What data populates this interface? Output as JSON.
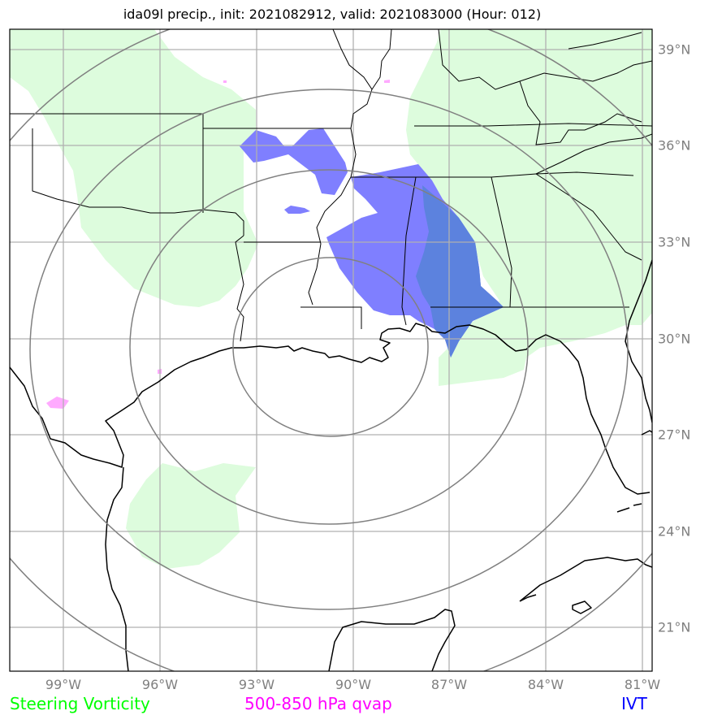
{
  "title": "ida09l precip., init: 2021082912, valid: 2021083000 (Hour: 012)",
  "longitude_labels": [
    "99°W",
    "96°W",
    "93°W",
    "90°W",
    "87°W",
    "84°W",
    "81°W"
  ],
  "latitude_labels": [
    "39°N",
    "36°N",
    "33°N",
    "30°N",
    "27°N",
    "24°N",
    "21°N"
  ],
  "legend": {
    "steering_vorticity": {
      "label": "Steering Vorticity",
      "color": "#00ff00"
    },
    "qvap": {
      "label": "500-850 hPa qvap",
      "color": "#ff00ff"
    },
    "ivt": {
      "label": "IVT",
      "color": "#0000ff"
    }
  },
  "colors": {
    "vorticity_fill": "#ddfcdd",
    "ivt_fill": "#7f7fff",
    "ivt_overlap_fill": "#5c82de",
    "qvap_fill": "#ffaaff",
    "gridline": "#b0b0b0",
    "range_ring": "#808080",
    "coastline": "#000000"
  }
}
